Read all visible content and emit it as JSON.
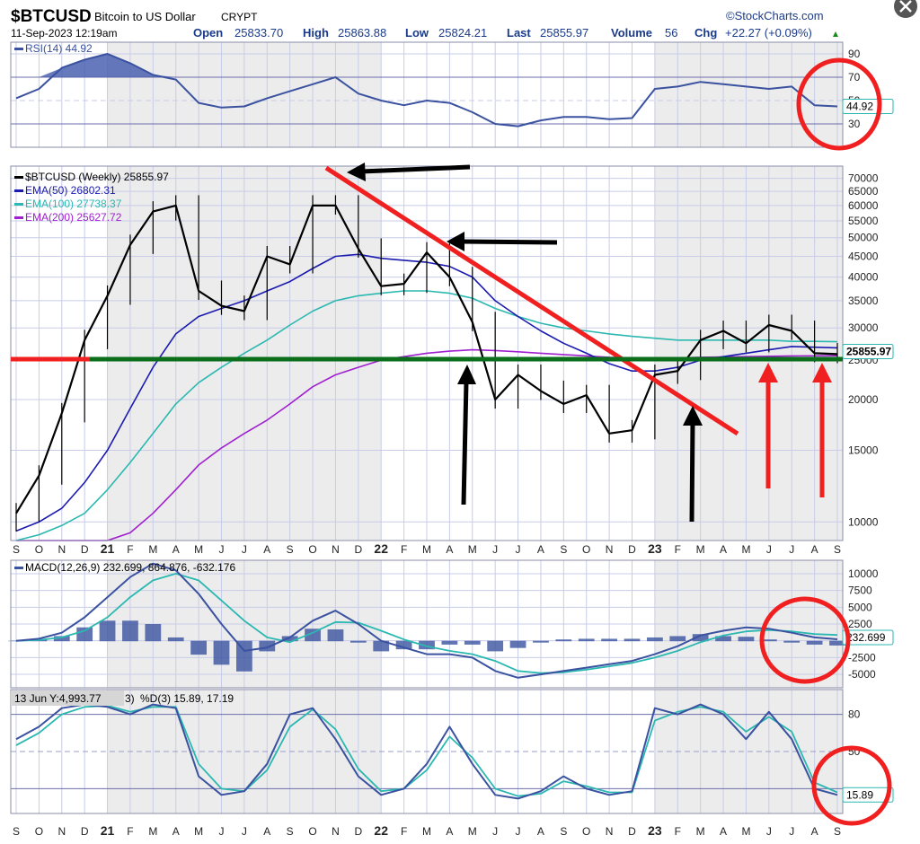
{
  "header": {
    "symbol": "$BTCUSD",
    "name": "Bitcoin to US Dollar",
    "exchange": "CRYPT",
    "brand": "©StockCharts.com",
    "date": "11-Sep-2023 12:19am",
    "open_label": "Open",
    "open": "25833.70",
    "high_label": "High",
    "high": "25863.88",
    "low_label": "Low",
    "low": "25824.21",
    "last_label": "Last",
    "last": "25855.97",
    "volume_label": "Volume",
    "volume": "56",
    "chg_label": "Chg",
    "chg": "+22.27 (+0.09%)"
  },
  "colors": {
    "price": "#000000",
    "ema50": "#1a1ab0",
    "ema100": "#2ab8b0",
    "ema200": "#a020d0",
    "indicator": "#3a52a0",
    "signal": "#2ab8b0",
    "hist": "#3a52a0",
    "annotation_red": "#f02020",
    "support_green": "#0a6e1a",
    "arrow_black": "#000000"
  },
  "chart_data": [
    {
      "type": "line",
      "panel": "rsi",
      "legend": "RSI(14) 44.92",
      "value_label": "44.92",
      "y_ticks": [
        90,
        70,
        50,
        30
      ],
      "ylim": [
        10,
        100
      ],
      "x": [
        "2020-09",
        "2020-10",
        "2020-11",
        "2020-12",
        "2021-01",
        "2021-02",
        "2021-03",
        "2021-04",
        "2021-05",
        "2021-06",
        "2021-07",
        "2021-08",
        "2021-09",
        "2021-10",
        "2021-11",
        "2021-12",
        "2022-01",
        "2022-02",
        "2022-03",
        "2022-04",
        "2022-05",
        "2022-06",
        "2022-07",
        "2022-08",
        "2022-09",
        "2022-10",
        "2022-11",
        "2022-12",
        "2023-01",
        "2023-02",
        "2023-03",
        "2023-04",
        "2023-05",
        "2023-06",
        "2023-07",
        "2023-08",
        "2023-09"
      ],
      "values": [
        52,
        60,
        78,
        85,
        90,
        82,
        72,
        68,
        48,
        44,
        45,
        52,
        58,
        64,
        70,
        56,
        50,
        46,
        50,
        48,
        40,
        30,
        28,
        33,
        36,
        36,
        34,
        35,
        60,
        62,
        66,
        64,
        62,
        60,
        62,
        46,
        45
      ]
    },
    {
      "type": "line",
      "panel": "price",
      "legend": [
        "$BTCUSD (Weekly) 25855.97",
        "EMA(50) 26802.31",
        "EMA(100) 27738.37",
        "EMA(200) 25627.72"
      ],
      "last_label": "25855.97",
      "y_scale": "log",
      "y_ticks": [
        70000,
        65000,
        60000,
        55000,
        50000,
        45000,
        40000,
        35000,
        30000,
        25000,
        20000,
        15000,
        10000
      ],
      "ylim": [
        9000,
        75000
      ],
      "x": [
        "2020-09",
        "2020-10",
        "2020-11",
        "2020-12",
        "2021-01",
        "2021-02",
        "2021-03",
        "2021-04",
        "2021-05",
        "2021-06",
        "2021-07",
        "2021-08",
        "2021-09",
        "2021-10",
        "2021-11",
        "2021-12",
        "2022-01",
        "2022-02",
        "2022-03",
        "2022-04",
        "2022-05",
        "2022-06",
        "2022-07",
        "2022-08",
        "2022-09",
        "2022-10",
        "2022-11",
        "2022-12",
        "2023-01",
        "2023-02",
        "2023-03",
        "2023-04",
        "2023-05",
        "2023-06",
        "2023-07",
        "2023-08",
        "2023-09"
      ],
      "series": [
        {
          "name": "$BTCUSD (Weekly)",
          "values": [
            10500,
            13000,
            18500,
            28000,
            36000,
            48000,
            58000,
            60000,
            37000,
            34000,
            33000,
            45000,
            43000,
            60000,
            60000,
            47000,
            38000,
            38500,
            46000,
            40000,
            31000,
            20000,
            23000,
            21000,
            19500,
            20500,
            16500,
            16800,
            23000,
            23500,
            28000,
            29500,
            27500,
            30500,
            29500,
            26000,
            25856
          ]
        },
        {
          "name": "EMA(50)",
          "values": [
            9500,
            10000,
            10800,
            12500,
            15000,
            19000,
            24000,
            29000,
            32000,
            33500,
            35000,
            37000,
            39000,
            42000,
            45000,
            45500,
            44500,
            44000,
            43500,
            42500,
            40000,
            35000,
            32000,
            29500,
            27500,
            26000,
            24500,
            23500,
            23500,
            24000,
            25000,
            25500,
            26000,
            26500,
            27000,
            26900,
            26800
          ]
        },
        {
          "name": "EMA(100)",
          "values": [
            9000,
            9300,
            9800,
            10500,
            12000,
            14000,
            16500,
            19500,
            22000,
            24000,
            26000,
            28000,
            30500,
            33000,
            35000,
            36000,
            36500,
            37000,
            37000,
            36500,
            35500,
            33500,
            32000,
            30800,
            30000,
            29500,
            29000,
            28600,
            28300,
            28000,
            28000,
            28000,
            28000,
            28000,
            27800,
            27800,
            27738
          ]
        },
        {
          "name": "EMA(200)",
          "values": [
            9000,
            9000,
            9000,
            9000,
            9000,
            9400,
            10500,
            12000,
            13800,
            15200,
            16500,
            17800,
            19500,
            21500,
            23000,
            24000,
            25000,
            25500,
            26000,
            26300,
            26500,
            26400,
            26200,
            26000,
            25800,
            25600,
            25400,
            25300,
            25200,
            25300,
            25400,
            25450,
            25500,
            25550,
            25600,
            25620,
            25628
          ]
        }
      ]
    },
    {
      "type": "line",
      "panel": "macd",
      "legend": "MACD(12,26,9) 232.699, 864.876, -632.176",
      "legend_values": [
        "232.699",
        "864.876",
        "-632.176"
      ],
      "value_label": "232.699",
      "y_ticks": [
        10000,
        7500,
        5000,
        2500,
        0,
        -2500,
        -5000
      ],
      "tick_labels": [
        "10000",
        "7500",
        "5000",
        "2500",
        "",
        "-2500",
        "-5000"
      ],
      "ylim": [
        -7000,
        12000
      ],
      "x": [
        "2020-09",
        "2020-10",
        "2020-11",
        "2020-12",
        "2021-01",
        "2021-02",
        "2021-03",
        "2021-04",
        "2021-05",
        "2021-06",
        "2021-07",
        "2021-08",
        "2021-09",
        "2021-10",
        "2021-11",
        "2021-12",
        "2022-01",
        "2022-02",
        "2022-03",
        "2022-04",
        "2022-05",
        "2022-06",
        "2022-07",
        "2022-08",
        "2022-09",
        "2022-10",
        "2022-11",
        "2022-12",
        "2023-01",
        "2023-02",
        "2023-03",
        "2023-04",
        "2023-05",
        "2023-06",
        "2023-07",
        "2023-08",
        "2023-09"
      ],
      "series": [
        {
          "name": "MACD",
          "values": [
            0,
            300,
            1200,
            3500,
            6500,
            9500,
            11500,
            10500,
            7000,
            2500,
            -1500,
            -1000,
            500,
            3000,
            4500,
            2500,
            0,
            -1000,
            -2000,
            -2000,
            -2500,
            -4500,
            -5500,
            -5000,
            -4500,
            -4000,
            -3500,
            -3000,
            -2000,
            -800,
            800,
            1500,
            2000,
            1800,
            1200,
            500,
            232
          ]
        },
        {
          "name": "Signal",
          "values": [
            0,
            100,
            500,
            1500,
            3500,
            6500,
            9000,
            10000,
            9000,
            6000,
            3000,
            500,
            -200,
            1200,
            2800,
            2700,
            1500,
            200,
            -800,
            -1500,
            -2000,
            -3000,
            -4500,
            -4800,
            -4700,
            -4300,
            -3800,
            -3300,
            -2500,
            -1500,
            -200,
            800,
            1400,
            1600,
            1400,
            1000,
            865
          ]
        },
        {
          "name": "Histogram",
          "values": [
            0,
            200,
            700,
            2000,
            3000,
            3000,
            2500,
            500,
            -2000,
            -3500,
            -4500,
            -1500,
            700,
            1800,
            1700,
            -200,
            -1500,
            -1200,
            -1200,
            -500,
            -500,
            -1500,
            -1000,
            -200,
            200,
            300,
            300,
            300,
            500,
            700,
            1000,
            700,
            600,
            200,
            -200,
            -500,
            -632
          ]
        }
      ]
    },
    {
      "type": "line",
      "panel": "stochastic",
      "legend": "%D(3) 15.89, 17.19",
      "legend_prefix": "3)",
      "legend_values": [
        "15.89",
        "17.19"
      ],
      "tooltip": "13 Jun Y:4,993.77",
      "value_label": "15.89",
      "y_ticks": [
        80,
        50,
        20
      ],
      "tick_labels": [
        "80",
        "50",
        ""
      ],
      "ylim": [
        0,
        100
      ],
      "x": [
        "2020-09",
        "2020-10",
        "2020-11",
        "2020-12",
        "2021-01",
        "2021-02",
        "2021-03",
        "2021-04",
        "2021-05",
        "2021-06",
        "2021-07",
        "2021-08",
        "2021-09",
        "2021-10",
        "2021-11",
        "2021-12",
        "2022-01",
        "2022-02",
        "2022-03",
        "2022-04",
        "2022-05",
        "2022-06",
        "2022-07",
        "2022-08",
        "2022-09",
        "2022-10",
        "2022-11",
        "2022-12",
        "2023-01",
        "2023-02",
        "2023-03",
        "2023-04",
        "2023-05",
        "2023-06",
        "2023-07",
        "2023-08",
        "2023-09"
      ],
      "series": [
        {
          "name": "%K",
          "values": [
            60,
            70,
            85,
            88,
            86,
            80,
            88,
            85,
            30,
            15,
            18,
            40,
            80,
            85,
            60,
            30,
            15,
            20,
            40,
            70,
            40,
            15,
            12,
            18,
            30,
            20,
            15,
            18,
            85,
            80,
            88,
            80,
            60,
            82,
            60,
            20,
            15
          ]
        },
        {
          "name": "%D",
          "values": [
            55,
            65,
            80,
            86,
            87,
            82,
            86,
            86,
            40,
            20,
            18,
            35,
            70,
            84,
            68,
            36,
            18,
            20,
            35,
            62,
            45,
            20,
            14,
            16,
            26,
            22,
            17,
            17,
            75,
            82,
            86,
            82,
            66,
            78,
            66,
            25,
            17
          ]
        }
      ]
    }
  ],
  "x_axis_labels": [
    "S",
    "O",
    "N",
    "D",
    "21",
    "F",
    "M",
    "A",
    "M",
    "J",
    "J",
    "A",
    "S",
    "O",
    "N",
    "D",
    "22",
    "F",
    "M",
    "A",
    "M",
    "J",
    "J",
    "A",
    "S",
    "O",
    "N",
    "D",
    "23",
    "F",
    "M",
    "A",
    "M",
    "J",
    "J",
    "A",
    "S"
  ]
}
